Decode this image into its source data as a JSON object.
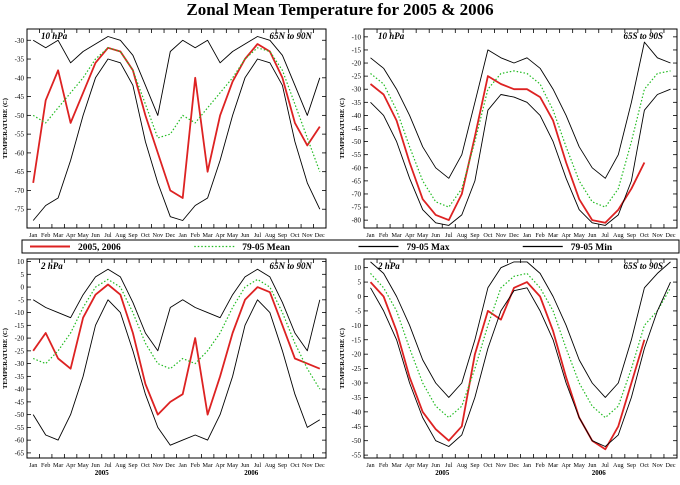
{
  "figure": {
    "title": "Zonal Mean Temperature for 2005 & 2006"
  },
  "legend": {
    "position": "center",
    "entries": [
      {
        "label": "2005, 2006",
        "color": "#dd2222",
        "style": "solid"
      },
      {
        "label": "79-05 Mean",
        "color": "#22bb22",
        "style": "dotted"
      },
      {
        "label": "79-05 Max",
        "color": "#000000",
        "style": "solid"
      },
      {
        "label": "79-05 Min",
        "color": "#000000",
        "style": "solid"
      }
    ]
  },
  "chart_data": [
    {
      "type": "line",
      "pressure_label": "10 hPa",
      "region_label": "65N to 90N",
      "ylabel": "TEMPERATURE (C)",
      "ylim": [
        -80,
        -27
      ],
      "yticks": [
        -75,
        -70,
        -65,
        -60,
        -55,
        -50,
        -45,
        -40,
        -35,
        -30
      ],
      "x_month_labels": [
        "Jan",
        "Feb",
        "Mar",
        "Apr",
        "May",
        "Jun",
        "Jul",
        "Aug",
        "Sep",
        "Oct",
        "Nov",
        "Dec",
        "Jan",
        "Feb",
        "Mar",
        "Apr",
        "May",
        "Jun",
        "Jul",
        "Aug",
        "Sep",
        "Oct",
        "Nov",
        "Dec"
      ],
      "x_year_labels": [
        {
          "month_index": 5.5,
          "text": "2005"
        },
        {
          "month_index": 17.5,
          "text": "2006"
        }
      ],
      "series": [
        {
          "name": "2005, 2006",
          "color": "#dd2222",
          "values": [
            -68,
            -46,
            -38,
            -52,
            -44,
            -36,
            -32,
            -33,
            -38,
            -50,
            -60,
            -70,
            -72,
            -40,
            -65,
            -50,
            -41,
            -35,
            -31,
            -33,
            -40,
            -52,
            -58,
            -53
          ]
        },
        {
          "name": "79-05 Mean",
          "color": "#22bb22",
          "values": [
            -50,
            -52,
            -48,
            -44,
            -40,
            -35,
            -32,
            -33,
            -38,
            -47,
            -56,
            -55,
            -50,
            -52,
            -48,
            -44,
            -40,
            -35,
            -32,
            -33,
            -38,
            -47,
            -56,
            -65
          ]
        },
        {
          "name": "79-05 Max",
          "color": "#000000",
          "values": [
            -30,
            -32,
            -30,
            -36,
            -33,
            -31,
            -29,
            -30,
            -34,
            -42,
            -50,
            -33,
            -30,
            -32,
            -30,
            -36,
            -33,
            -31,
            -29,
            -30,
            -34,
            -42,
            -50,
            -40
          ]
        },
        {
          "name": "79-05 Min",
          "color": "#000000",
          "values": [
            -78,
            -74,
            -72,
            -62,
            -50,
            -40,
            -35,
            -36,
            -42,
            -57,
            -68,
            -77,
            -78,
            -74,
            -72,
            -62,
            -50,
            -40,
            -35,
            -36,
            -42,
            -57,
            -68,
            -75
          ]
        }
      ]
    },
    {
      "type": "line",
      "pressure_label": "10 hPa",
      "region_label": "65S to 90S",
      "ylabel": "TEMPERATURE (C)",
      "ylim": [
        -83,
        -7
      ],
      "yticks": [
        -80,
        -75,
        -70,
        -65,
        -60,
        -55,
        -50,
        -45,
        -40,
        -35,
        -30,
        -25,
        -20,
        -15,
        -10
      ],
      "x_month_labels": [
        "Jan",
        "Feb",
        "Mar",
        "Apr",
        "May",
        "Jun",
        "Jul",
        "Aug",
        "Sep",
        "Oct",
        "Nov",
        "Dec",
        "Jan",
        "Feb",
        "Mar",
        "Apr",
        "May",
        "Jun",
        "Jul",
        "Aug",
        "Sep",
        "Oct",
        "Nov",
        "Dec"
      ],
      "x_year_labels": [
        {
          "month_index": 5.5,
          "text": "2005"
        },
        {
          "month_index": 17.5,
          "text": "2006"
        }
      ],
      "series": [
        {
          "name": "2005, 2006",
          "color": "#dd2222",
          "values": [
            -28,
            -32,
            -42,
            -58,
            -72,
            -78,
            -80,
            -70,
            -48,
            -25,
            -28,
            -30,
            -30,
            -33,
            -42,
            -58,
            -72,
            -80,
            -81,
            -76,
            -68,
            -58,
            null,
            null
          ]
        },
        {
          "name": "79-05 Mean",
          "color": "#22bb22",
          "values": [
            -24,
            -28,
            -38,
            -52,
            -65,
            -73,
            -75,
            -68,
            -50,
            -30,
            -24,
            -23,
            -24,
            -28,
            -38,
            -52,
            -65,
            -73,
            -75,
            -68,
            -50,
            -30,
            -24,
            -23
          ]
        },
        {
          "name": "79-05 Max",
          "color": "#000000",
          "values": [
            -18,
            -22,
            -30,
            -40,
            -52,
            -60,
            -64,
            -55,
            -35,
            -15,
            -18,
            -20,
            -18,
            -22,
            -30,
            -40,
            -52,
            -60,
            -64,
            -55,
            -35,
            -12,
            -18,
            -20
          ]
        },
        {
          "name": "79-05 Min",
          "color": "#000000",
          "values": [
            -35,
            -40,
            -50,
            -64,
            -76,
            -81,
            -82,
            -78,
            -65,
            -38,
            -32,
            -33,
            -35,
            -40,
            -50,
            -64,
            -76,
            -81,
            -82,
            -78,
            -65,
            -38,
            -32,
            -30
          ]
        }
      ]
    },
    {
      "type": "line",
      "pressure_label": "2 hPa",
      "region_label": "65N to 90N",
      "ylabel": "TEMPERATURE (C)",
      "ylim": [
        -67,
        11
      ],
      "yticks": [
        -65,
        -60,
        -55,
        -50,
        -45,
        -40,
        -35,
        -30,
        -25,
        -20,
        -15,
        -10,
        -5,
        0,
        5,
        10
      ],
      "x_month_labels": [
        "Jan",
        "Feb",
        "Mar",
        "Apr",
        "May",
        "Jun",
        "Jul",
        "Aug",
        "Sep",
        "Oct",
        "Nov",
        "Dec",
        "Jan",
        "Feb",
        "Mar",
        "Apr",
        "May",
        "Jun",
        "Jul",
        "Aug",
        "Sep",
        "Oct",
        "Nov",
        "Dec"
      ],
      "x_year_labels": [
        {
          "month_index": 5.5,
          "text": "2005"
        },
        {
          "month_index": 17.5,
          "text": "2006"
        }
      ],
      "series": [
        {
          "name": "2005, 2006",
          "color": "#dd2222",
          "values": [
            -25,
            -18,
            -28,
            -32,
            -12,
            -3,
            1,
            -3,
            -18,
            -38,
            -50,
            -45,
            -42,
            -20,
            -50,
            -35,
            -18,
            -5,
            0,
            -2,
            -15,
            -28,
            -30,
            -32
          ]
        },
        {
          "name": "79-05 Mean",
          "color": "#22bb22",
          "values": [
            -28,
            -30,
            -25,
            -18,
            -8,
            0,
            3,
            0,
            -10,
            -22,
            -30,
            -32,
            -28,
            -30,
            -25,
            -18,
            -8,
            0,
            3,
            0,
            -10,
            -22,
            -32,
            -40
          ]
        },
        {
          "name": "79-05 Max",
          "color": "#000000",
          "values": [
            -5,
            -8,
            -10,
            -12,
            -3,
            4,
            7,
            4,
            -6,
            -18,
            -25,
            -8,
            -5,
            -8,
            -10,
            -12,
            -3,
            4,
            7,
            4,
            -6,
            -18,
            -25,
            -5
          ]
        },
        {
          "name": "79-05 Min",
          "color": "#000000",
          "values": [
            -50,
            -58,
            -60,
            -50,
            -35,
            -15,
            -5,
            -10,
            -25,
            -42,
            -55,
            -62,
            -60,
            -58,
            -60,
            -50,
            -35,
            -15,
            -5,
            -10,
            -25,
            -42,
            -55,
            -52
          ]
        }
      ]
    },
    {
      "type": "line",
      "pressure_label": "2 hPa",
      "region_label": "65S to 90S",
      "ylabel": "TEMPERATURE (C)",
      "ylim": [
        -56,
        13
      ],
      "yticks": [
        -55,
        -50,
        -45,
        -40,
        -35,
        -30,
        -25,
        -20,
        -15,
        -10,
        -5,
        0,
        5,
        10
      ],
      "x_month_labels": [
        "Jan",
        "Feb",
        "Mar",
        "Apr",
        "May",
        "Jun",
        "Jul",
        "Aug",
        "Sep",
        "Oct",
        "Nov",
        "Dec",
        "Jan",
        "Feb",
        "Mar",
        "Apr",
        "May",
        "Jun",
        "Jul",
        "Aug",
        "Sep",
        "Oct",
        "Nov",
        "Dec"
      ],
      "x_year_labels": [
        {
          "month_index": 5.5,
          "text": "2005"
        },
        {
          "month_index": 17.5,
          "text": "2006"
        }
      ],
      "series": [
        {
          "name": "2005, 2006",
          "color": "#dd2222",
          "values": [
            5,
            0,
            -12,
            -28,
            -40,
            -46,
            -50,
            -45,
            -20,
            -5,
            -8,
            3,
            5,
            0,
            -12,
            -28,
            -42,
            -50,
            -53,
            -45,
            -30,
            -15,
            null,
            null
          ]
        },
        {
          "name": "79-05 Mean",
          "color": "#22bb22",
          "values": [
            8,
            3,
            -5,
            -18,
            -30,
            -38,
            -42,
            -38,
            -25,
            -10,
            3,
            7,
            8,
            3,
            -5,
            -18,
            -30,
            -38,
            -42,
            -38,
            -25,
            -10,
            -5,
            3
          ]
        },
        {
          "name": "79-05 Max",
          "color": "#000000",
          "values": [
            12,
            8,
            0,
            -10,
            -22,
            -30,
            -35,
            -30,
            -15,
            3,
            10,
            12,
            12,
            8,
            0,
            -10,
            -22,
            -30,
            -35,
            -30,
            -15,
            3,
            8,
            12
          ]
        },
        {
          "name": "79-05 Min",
          "color": "#000000",
          "values": [
            3,
            -5,
            -15,
            -30,
            -42,
            -50,
            -52,
            -48,
            -35,
            -18,
            -5,
            2,
            3,
            -5,
            -15,
            -30,
            -42,
            -50,
            -52,
            -48,
            -35,
            -18,
            -5,
            5
          ]
        }
      ]
    }
  ]
}
